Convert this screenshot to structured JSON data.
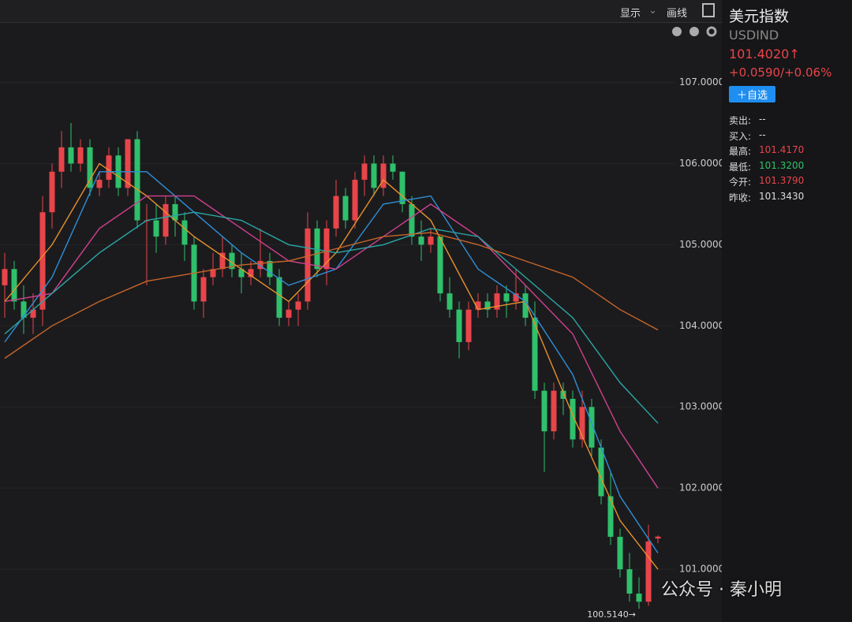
{
  "toolbar": {
    "display": "显示",
    "draw": "画线"
  },
  "quote": {
    "name": "美元指数",
    "code": "USDIND",
    "price": "101.4020↑",
    "change": "+0.0590/+0.06%",
    "watch": "＋自选",
    "fields": [
      [
        "卖出:",
        "--"
      ],
      [
        "买入:",
        "--"
      ],
      [
        "最高:",
        "101.4170"
      ],
      [
        "最低:",
        "101.3200"
      ],
      [
        "今开:",
        "101.3790"
      ],
      [
        "昨收:",
        "101.3430"
      ]
    ]
  },
  "watermark": "公众号 · 秦小明",
  "chart_data": {
    "type": "candlestick",
    "ylim": [
      100.35,
      107.53
    ],
    "yticks": [
      {
        "value": 101,
        "label": "101.0000"
      },
      {
        "value": 102,
        "label": "102.0000"
      },
      {
        "value": 103,
        "label": "103.0000"
      },
      {
        "value": 104,
        "label": "104.0000"
      },
      {
        "value": 105,
        "label": "105.0000"
      },
      {
        "value": 106,
        "label": "106.0000"
      },
      {
        "value": 107,
        "label": "107.0000"
      }
    ],
    "grid": true,
    "up_color": "#e8454b",
    "down_color": "#2fc06b",
    "ohlc": [
      [
        104.5,
        104.9,
        104.1,
        104.7
      ],
      [
        104.7,
        104.8,
        104.2,
        104.3
      ],
      [
        104.3,
        104.5,
        103.9,
        104.1
      ],
      [
        104.1,
        104.4,
        103.9,
        104.2
      ],
      [
        104.2,
        105.6,
        104.0,
        105.4
      ],
      [
        105.4,
        106.0,
        105.2,
        105.9
      ],
      [
        105.9,
        106.4,
        105.7,
        106.2
      ],
      [
        106.2,
        106.5,
        105.9,
        106.0
      ],
      [
        106.0,
        106.3,
        105.9,
        106.2
      ],
      [
        106.2,
        106.3,
        105.6,
        105.7
      ],
      [
        105.7,
        105.9,
        105.6,
        105.8
      ],
      [
        105.8,
        106.2,
        105.7,
        106.1
      ],
      [
        106.1,
        106.2,
        105.6,
        105.7
      ],
      [
        105.7,
        106.3,
        105.6,
        106.3
      ],
      [
        106.3,
        106.4,
        105.2,
        105.3
      ],
      [
        105.3,
        105.5,
        104.5,
        105.3
      ],
      [
        105.3,
        105.5,
        104.9,
        105.1
      ],
      [
        105.1,
        105.6,
        105.0,
        105.5
      ],
      [
        105.5,
        105.6,
        105.1,
        105.3
      ],
      [
        105.3,
        105.4,
        104.8,
        105.0
      ],
      [
        105.0,
        105.1,
        104.2,
        104.3
      ],
      [
        104.3,
        104.7,
        104.1,
        104.6
      ],
      [
        104.6,
        104.9,
        104.5,
        104.7
      ],
      [
        104.7,
        105.1,
        104.6,
        104.9
      ],
      [
        104.9,
        105.0,
        104.6,
        104.7
      ],
      [
        104.7,
        104.9,
        104.4,
        104.6
      ],
      [
        104.6,
        104.8,
        104.5,
        104.7
      ],
      [
        104.7,
        105.2,
        104.6,
        104.8
      ],
      [
        104.8,
        104.9,
        104.5,
        104.6
      ],
      [
        104.6,
        104.7,
        104.0,
        104.1
      ],
      [
        104.1,
        104.3,
        104.0,
        104.2
      ],
      [
        104.2,
        104.4,
        104.0,
        104.3
      ],
      [
        104.3,
        105.4,
        104.2,
        105.2
      ],
      [
        105.2,
        105.3,
        104.6,
        104.7
      ],
      [
        104.7,
        105.3,
        104.5,
        105.2
      ],
      [
        105.2,
        105.8,
        105.1,
        105.6
      ],
      [
        105.6,
        105.7,
        105.2,
        105.3
      ],
      [
        105.3,
        105.9,
        105.2,
        105.8
      ],
      [
        105.8,
        106.1,
        105.6,
        106.0
      ],
      [
        106.0,
        106.1,
        105.6,
        105.7
      ],
      [
        105.7,
        106.1,
        105.6,
        106.0
      ],
      [
        106.0,
        106.1,
        105.8,
        105.9
      ],
      [
        105.9,
        105.9,
        105.4,
        105.5
      ],
      [
        105.5,
        105.6,
        105.0,
        105.1
      ],
      [
        105.1,
        105.3,
        104.8,
        105.0
      ],
      [
        105.0,
        105.2,
        104.9,
        105.1
      ],
      [
        105.1,
        105.1,
        104.3,
        104.4
      ],
      [
        104.4,
        104.6,
        104.1,
        104.2
      ],
      [
        104.2,
        104.3,
        103.6,
        103.8
      ],
      [
        103.8,
        104.3,
        103.7,
        104.2
      ],
      [
        104.2,
        104.4,
        104.1,
        104.3
      ],
      [
        104.3,
        104.4,
        104.1,
        104.2
      ],
      [
        104.2,
        104.5,
        104.1,
        104.4
      ],
      [
        104.4,
        104.5,
        104.1,
        104.3
      ],
      [
        104.3,
        104.7,
        104.2,
        104.4
      ],
      [
        104.4,
        104.5,
        104.0,
        104.1
      ],
      [
        104.1,
        104.3,
        103.1,
        103.2
      ],
      [
        103.2,
        103.3,
        102.2,
        102.7
      ],
      [
        102.7,
        103.3,
        102.6,
        103.2
      ],
      [
        103.2,
        103.3,
        102.9,
        103.1
      ],
      [
        103.1,
        103.2,
        102.5,
        102.6
      ],
      [
        102.6,
        103.2,
        102.5,
        103.0
      ],
      [
        103.0,
        103.1,
        102.4,
        102.5
      ],
      [
        102.5,
        102.6,
        101.8,
        101.9
      ],
      [
        101.9,
        102.2,
        101.3,
        101.4
      ],
      [
        101.4,
        101.5,
        100.9,
        101.0
      ],
      [
        101.0,
        101.2,
        100.6,
        100.7
      ],
      [
        100.7,
        100.9,
        100.514,
        100.6
      ],
      [
        100.6,
        101.55,
        100.55,
        101.343
      ],
      [
        101.379,
        101.417,
        101.32,
        101.402
      ]
    ],
    "moving_averages": [
      {
        "color": "#e8912c",
        "x": [
          0,
          5,
          10,
          15,
          20,
          25,
          30,
          35,
          40,
          45,
          50,
          55,
          60,
          65,
          69
        ],
        "values": [
          104.3,
          105.0,
          106.0,
          105.6,
          105.1,
          104.7,
          104.3,
          104.9,
          105.8,
          105.3,
          104.2,
          104.3,
          102.9,
          101.6,
          101.0
        ]
      },
      {
        "color": "#2f8fd8",
        "x": [
          0,
          5,
          10,
          15,
          20,
          25,
          30,
          35,
          40,
          45,
          50,
          55,
          60,
          65,
          69
        ],
        "values": [
          103.8,
          104.6,
          105.9,
          105.9,
          105.4,
          104.9,
          104.5,
          104.7,
          105.5,
          105.6,
          104.7,
          104.3,
          103.4,
          101.9,
          101.2
        ]
      },
      {
        "color": "#d0408e",
        "x": [
          0,
          5,
          10,
          15,
          20,
          25,
          30,
          35,
          40,
          45,
          50,
          55,
          60,
          65,
          69
        ],
        "values": [
          104.3,
          104.4,
          105.2,
          105.6,
          105.6,
          105.2,
          104.8,
          104.7,
          105.1,
          105.5,
          105.1,
          104.5,
          103.9,
          102.7,
          102.0
        ]
      },
      {
        "color": "#2ba6a6",
        "x": [
          0,
          5,
          10,
          15,
          20,
          25,
          30,
          35,
          40,
          45,
          50,
          55,
          60,
          65,
          69
        ],
        "values": [
          103.9,
          104.4,
          104.9,
          105.3,
          105.4,
          105.3,
          105.0,
          104.9,
          105.0,
          105.2,
          105.1,
          104.6,
          104.1,
          103.3,
          102.8
        ]
      },
      {
        "color": "#c8652a",
        "x": [
          0,
          5,
          10,
          15,
          20,
          25,
          30,
          35,
          40,
          45,
          50,
          55,
          60,
          65,
          69
        ],
        "values": [
          103.6,
          104.0,
          104.3,
          104.55,
          104.65,
          104.75,
          104.8,
          104.95,
          105.1,
          105.15,
          105.0,
          104.8,
          104.6,
          104.2,
          103.95
        ]
      }
    ],
    "low_marker": {
      "value": 100.514,
      "label": "100.5140→"
    }
  }
}
